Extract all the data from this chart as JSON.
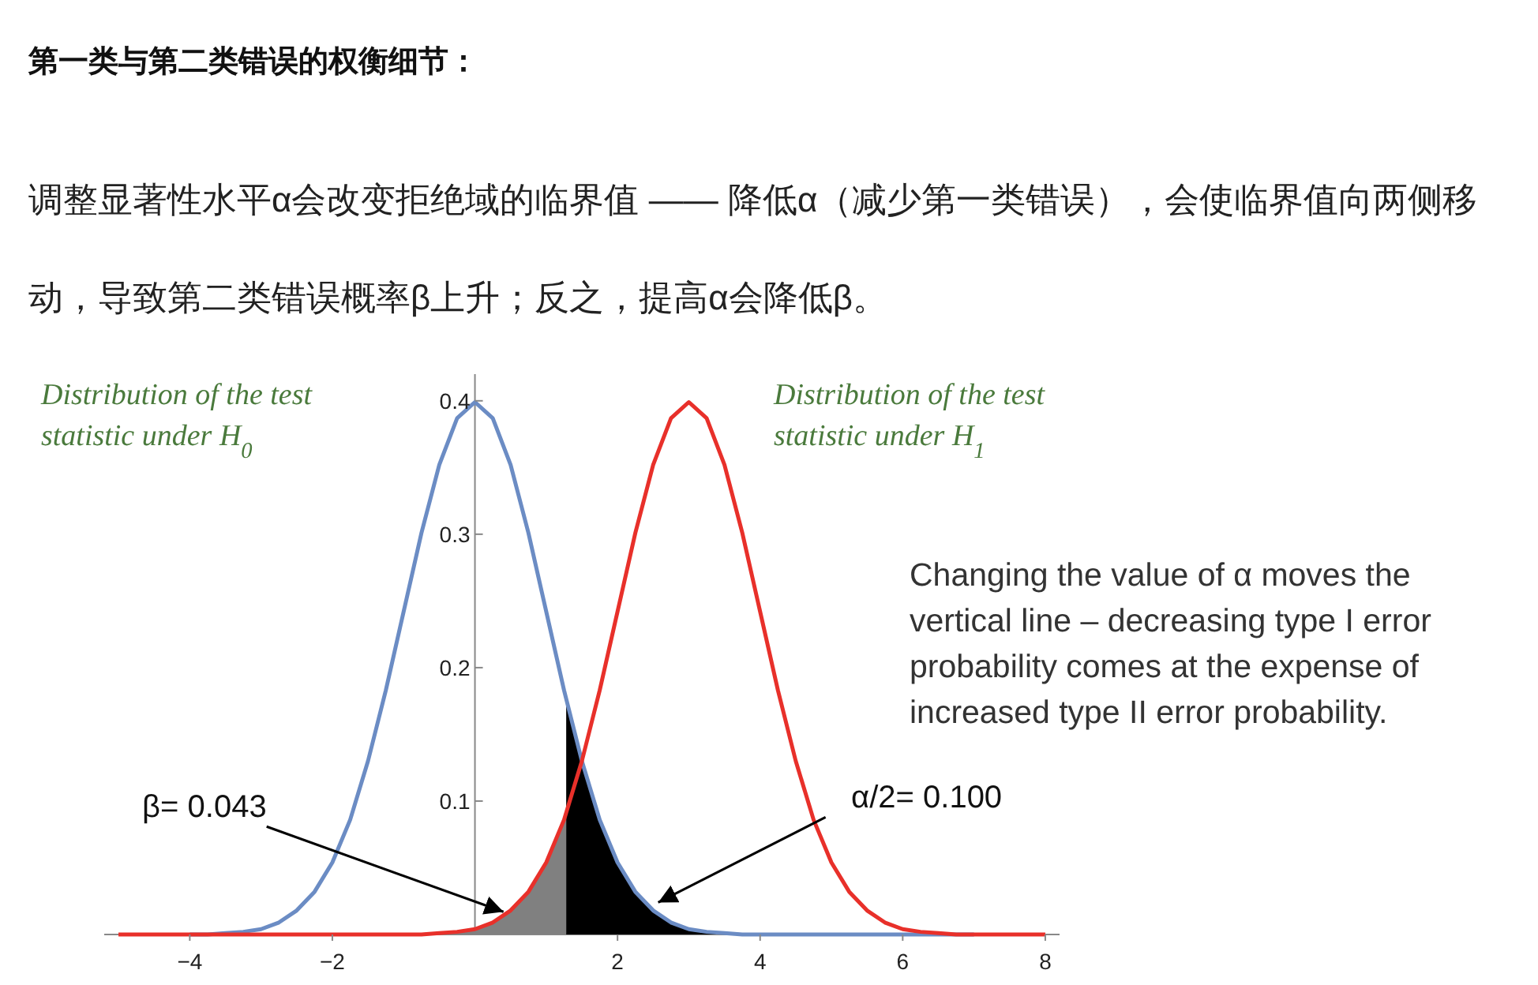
{
  "chart_data": {
    "type": "line",
    "title": "第一类与第二类错误的权衡细节：",
    "subtitle": "调整显著性水平α会改变拒绝域的临界值 —— 降低α（减少第一类错误），会使临界值向两侧移动，导致第二类错误概率β上升；反之，提高α会降低β。",
    "x": [
      -5,
      -4.75,
      -4.5,
      -4.25,
      -4,
      -3.75,
      -3.5,
      -3.25,
      -3,
      -2.75,
      -2.5,
      -2.25,
      -2,
      -1.75,
      -1.5,
      -1.25,
      -1,
      -0.75,
      -0.5,
      -0.25,
      0,
      0.25,
      0.5,
      0.75,
      1,
      1.25,
      1.5,
      1.75,
      2,
      2.25,
      2.5,
      2.75,
      3,
      3.25,
      3.5,
      3.75,
      4,
      4.25,
      4.5,
      4.75,
      5,
      5.25,
      5.5,
      5.75,
      6,
      6.25,
      6.5,
      6.75,
      7,
      7.25,
      7.5,
      7.75,
      8
    ],
    "series": [
      {
        "type": "area",
        "color": "#808080",
        "x": [
          -1,
          -0.5,
          0,
          0.25,
          0.5,
          0.75,
          1,
          1.28
        ],
        "values": [
          0,
          0.001,
          0.004,
          0.009,
          0.018,
          0.032,
          0.054,
          0.091
        ]
      },
      {
        "type": "area",
        "color": "#000000",
        "x": [
          1.28,
          1.5,
          1.75,
          2,
          2.25,
          2.5,
          2.75,
          3,
          3.5,
          4
        ],
        "values": [
          0.176,
          0.13,
          0.086,
          0.054,
          0.032,
          0.018,
          0.009,
          0.004,
          0.001,
          0
        ]
      },
      {
        "color": "#6b8cc4",
        "values": [
          null,
          null,
          null,
          null,
          0,
          0,
          0.001,
          0.002,
          0.004,
          0.009,
          0.018,
          0.032,
          0.054,
          0.086,
          0.13,
          0.183,
          0.242,
          0.301,
          0.352,
          0.387,
          0.399,
          0.387,
          0.352,
          0.301,
          0.242,
          0.183,
          0.13,
          0.086,
          0.054,
          0.032,
          0.018,
          0.009,
          0.004,
          0.002,
          0.001,
          0,
          0,
          0,
          0,
          0,
          0,
          0,
          0,
          0,
          0,
          0,
          0,
          0,
          0,
          null,
          null,
          null,
          null
        ]
      },
      {
        "color": "#e8302a",
        "values": [
          0,
          0,
          0,
          0,
          0,
          0,
          0,
          0,
          0,
          0,
          0,
          0,
          0,
          0,
          0,
          0,
          0,
          0,
          0.001,
          0.002,
          0.004,
          0.009,
          0.018,
          0.032,
          0.054,
          0.086,
          0.13,
          0.183,
          0.242,
          0.301,
          0.352,
          0.387,
          0.399,
          0.387,
          0.352,
          0.301,
          0.242,
          0.183,
          0.13,
          0.086,
          0.054,
          0.032,
          0.018,
          0.009,
          0.004,
          0.002,
          0.001,
          0,
          0,
          0,
          0,
          0,
          0
        ]
      }
    ],
    "xlim": [
      -5.2,
      8.2
    ],
    "ylim": [
      0,
      0.42
    ],
    "xticks": [
      -4,
      -2,
      2,
      4,
      6,
      8
    ],
    "yticks": [
      0.1,
      0.2,
      0.3,
      0.4
    ],
    "annotations": [
      "Distribution of the test statistic under H$_{0}$",
      "Distribution of the test statistic under H$_{1}$",
      {
        "text": "β= 0.043",
        "x": 0.4,
        "y": 0.017
      },
      {
        "text": "α/2= 0.100",
        "x": 2.57,
        "y": 0.024
      },
      "Changing the value of α moves the vertical line – decreasing type I error probability comes at the expense of increased type II error probability."
    ]
  }
}
